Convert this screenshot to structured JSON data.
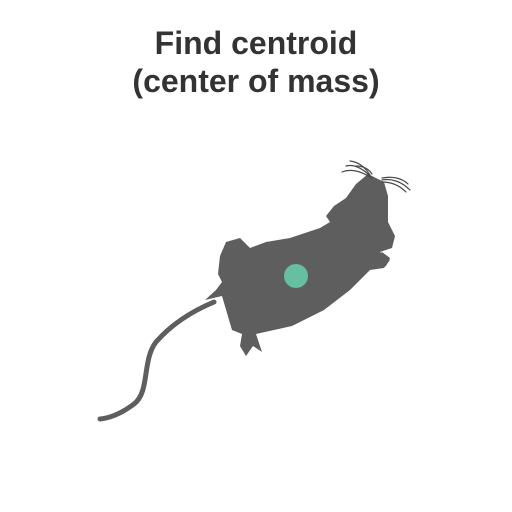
{
  "title": {
    "line1": "Find centroid",
    "line2": "(center of mass)"
  },
  "colors": {
    "mouse": "#5e5e5e",
    "centroid": "#66bfa0",
    "whiskers": "#4a4a4a",
    "title": "#333333"
  },
  "icons": {
    "mouse": "mouse-silhouette-icon",
    "centroid": "centroid-dot-icon"
  }
}
